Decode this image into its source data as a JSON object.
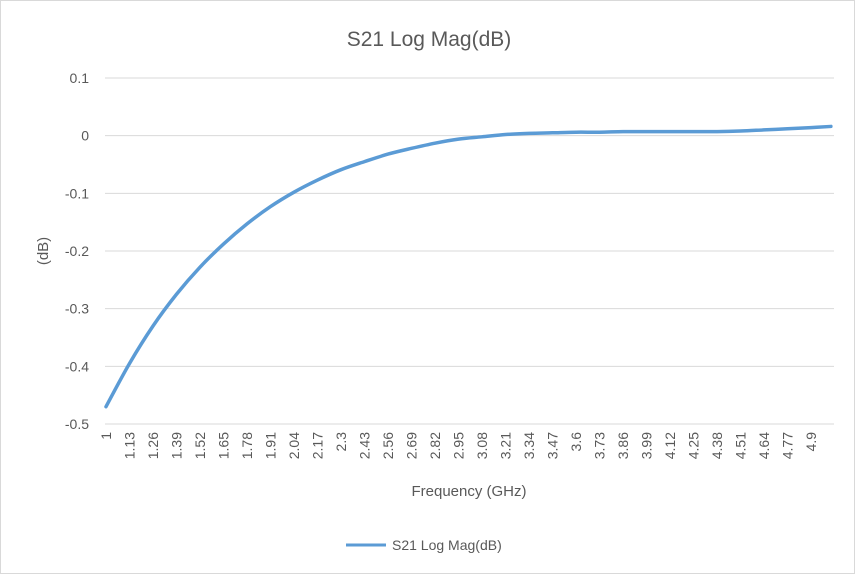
{
  "chart_data": {
    "type": "line",
    "title": "S21 Log Mag(dB)",
    "xlabel": "Frequency (GHz)",
    "ylabel": "(dB)",
    "x_tick_labels": [
      "1",
      "1.13",
      "1.26",
      "1.39",
      "1.52",
      "1.65",
      "1.78",
      "1.91",
      "2.04",
      "2.17",
      "2.3",
      "2.43",
      "2.56",
      "2.69",
      "2.82",
      "2.95",
      "3.08",
      "3.21",
      "3.34",
      "3.47",
      "3.6",
      "3.73",
      "3.86",
      "3.99",
      "4.12",
      "4.25",
      "4.38",
      "4.51",
      "4.64",
      "4.77",
      "4.9"
    ],
    "y_ticks": [
      0.1,
      0,
      -0.1,
      -0.2,
      -0.3,
      -0.4,
      -0.5
    ],
    "y_tick_labels": [
      "0.1",
      "0",
      "-0.1",
      "-0.2",
      "-0.3",
      "-0.4",
      "-0.5"
    ],
    "xlim": [
      1,
      5.01
    ],
    "ylim": [
      -0.5,
      0.1
    ],
    "grid": true,
    "legend_position": "bottom",
    "series": [
      {
        "name": "S21 Log Mag(dB)",
        "color": "#5b9bd5",
        "x": [
          1,
          1.13,
          1.26,
          1.39,
          1.52,
          1.65,
          1.78,
          1.91,
          2.04,
          2.17,
          2.3,
          2.43,
          2.56,
          2.69,
          2.82,
          2.95,
          3.08,
          3.21,
          3.34,
          3.47,
          3.6,
          3.73,
          3.86,
          3.99,
          4.12,
          4.25,
          4.38,
          4.51,
          4.64,
          4.77,
          4.9,
          5.01
        ],
        "y": [
          -0.47,
          -0.395,
          -0.33,
          -0.275,
          -0.228,
          -0.188,
          -0.153,
          -0.123,
          -0.098,
          -0.077,
          -0.059,
          -0.045,
          -0.032,
          -0.022,
          -0.013,
          -0.006,
          -0.002,
          0.002,
          0.004,
          0.005,
          0.006,
          0.006,
          0.007,
          0.007,
          0.007,
          0.007,
          0.007,
          0.008,
          0.01,
          0.012,
          0.014,
          0.016
        ]
      }
    ]
  }
}
